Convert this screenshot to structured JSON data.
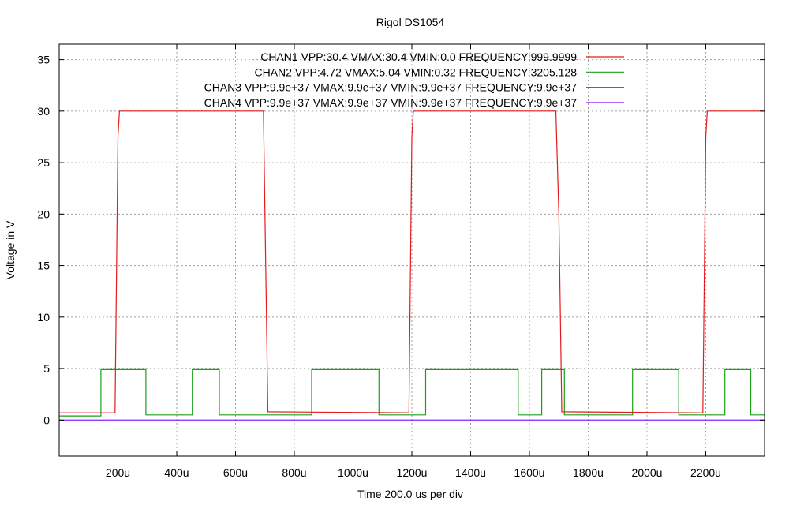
{
  "chart_data": {
    "type": "line",
    "title": "Rigol DS1054",
    "xlabel": "Time 200.0 us per div",
    "ylabel": "Voltage in V",
    "xlim": [
      0,
      2400
    ],
    "ylim": [
      -3.5,
      36.5
    ],
    "xticks": [
      200,
      400,
      600,
      800,
      1000,
      1200,
      1400,
      1600,
      1800,
      2000,
      2200
    ],
    "xtick_labels": [
      "200u",
      "400u",
      "600u",
      "800u",
      "1000u",
      "1200u",
      "1400u",
      "1600u",
      "1800u",
      "2000u",
      "2200u"
    ],
    "yticks": [
      0,
      5,
      10,
      15,
      20,
      25,
      30,
      35
    ],
    "ytick_labels": [
      "0",
      "5",
      "10",
      "15",
      "20",
      "25",
      "30",
      "35"
    ],
    "grid": true,
    "legend_position": "top-right",
    "series": [
      {
        "name": "CHAN1  VPP:30.4  VMAX:30.4  VMIN:0.0  FREQUENCY:999.9999",
        "color": "#e41a1c",
        "x": [
          0,
          190,
          200,
          205,
          695,
          700,
          710,
          1190,
          1200,
          1205,
          1690,
          1700,
          1710,
          2190,
          2200,
          2205,
          2400
        ],
        "y": [
          0.7,
          0.7,
          27.5,
          30,
          30,
          20,
          0.8,
          0.7,
          27.5,
          30,
          30,
          20,
          0.8,
          0.7,
          27.5,
          30,
          30
        ]
      },
      {
        "name": "CHAN2  VPP:4.72  VMAX:5.04  VMIN:0.32  FREQUENCY:3205.128",
        "color": "#1aa11a",
        "x": [
          0,
          142,
          142,
          295,
          295,
          453,
          453,
          545,
          545,
          859,
          859,
          1088,
          1088,
          1247,
          1247,
          1562,
          1562,
          1642,
          1642,
          1719,
          1719,
          1951,
          1951,
          2108,
          2108,
          2265,
          2265,
          2353,
          2353,
          2400
        ],
        "y": [
          0.4,
          0.4,
          4.9,
          4.9,
          0.5,
          0.5,
          4.9,
          4.9,
          0.5,
          0.5,
          4.9,
          4.9,
          0.5,
          0.5,
          4.9,
          4.9,
          0.5,
          0.5,
          4.9,
          4.9,
          0.5,
          0.5,
          4.9,
          4.9,
          0.5,
          0.5,
          4.9,
          4.9,
          0.5,
          0.5
        ]
      },
      {
        "name": "CHAN3  VPP:9.9e+37  VMAX:9.9e+37  VMIN:9.9e+37  FREQUENCY:9.9e+37",
        "color": "#1f78d4",
        "x": [
          0,
          2400
        ],
        "y": [
          0,
          0
        ]
      },
      {
        "name": "CHAN4  VPP:9.9e+37  VMAX:9.9e+37  VMIN:9.9e+37  FREQUENCY:9.9e+37",
        "color": "#9b30ff",
        "x": [
          0,
          2400
        ],
        "y": [
          0,
          0
        ]
      }
    ]
  }
}
